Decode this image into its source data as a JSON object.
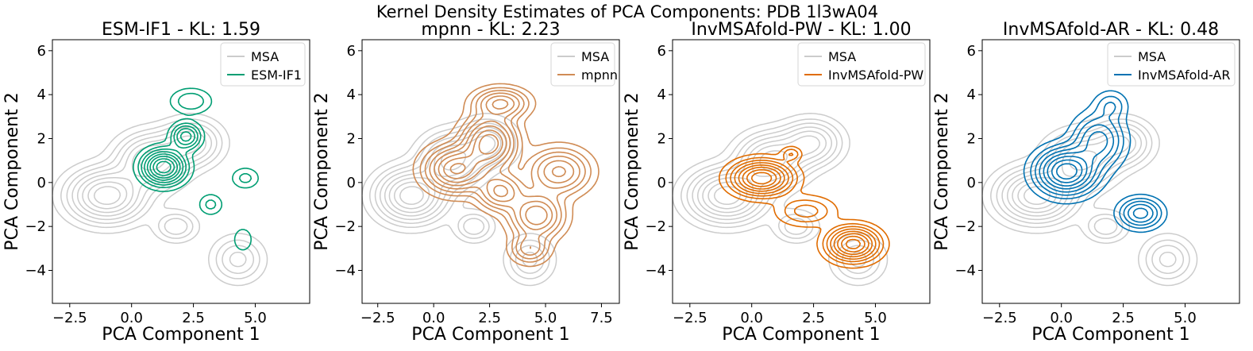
{
  "suptitle": "Kernel Density Estimates of PCA Components: PDB 1l3wA04",
  "reference": {
    "name": "MSA",
    "color": "#cccccc"
  },
  "chart_data": [
    {
      "type": "kde-contour",
      "title": "ESM-IF1 - KL: 1.59",
      "xlabel": "PCA Component 1",
      "ylabel": "PCA Component 2",
      "xlim": [
        -3.2,
        7.2
      ],
      "ylim": [
        -5.5,
        6.5
      ],
      "xticks": [
        "−2.5",
        "0.0",
        "2.5",
        "5.0"
      ],
      "xtick_values": [
        -2.5,
        0.0,
        2.5,
        5.0
      ],
      "yticks": [
        "−4",
        "−2",
        "0",
        "2",
        "4",
        "6"
      ],
      "ytick_values": [
        -4,
        -2,
        0,
        2,
        4,
        6
      ],
      "legend": [
        "MSA",
        "ESM-IF1"
      ],
      "series": [
        {
          "name": "MSA",
          "color": "#cccccc",
          "kernels": [
            [
              -1.0,
              -0.6,
              0.9,
              0.7,
              1.0
            ],
            [
              0.8,
              1.0,
              0.8,
              0.7,
              0.8
            ],
            [
              2.4,
              1.8,
              0.7,
              0.6,
              0.6
            ],
            [
              1.8,
              -2.0,
              0.5,
              0.4,
              0.3
            ],
            [
              4.3,
              -3.5,
              0.6,
              0.6,
              0.35
            ]
          ]
        },
        {
          "name": "ESM-IF1",
          "color": "#009e73",
          "kernels": [
            [
              1.3,
              0.7,
              0.5,
              0.45,
              1.0
            ],
            [
              2.2,
              2.1,
              0.35,
              0.35,
              0.5
            ],
            [
              2.4,
              3.7,
              0.5,
              0.35,
              0.2
            ],
            [
              4.6,
              0.2,
              0.35,
              0.3,
              0.15
            ],
            [
              3.2,
              -1.0,
              0.3,
              0.3,
              0.15
            ],
            [
              4.5,
              -2.6,
              0.25,
              0.35,
              0.12
            ]
          ]
        }
      ]
    },
    {
      "type": "kde-contour",
      "title": "mpnn - KL: 2.23",
      "xlabel": "PCA Component 1",
      "ylabel": "PCA Component 2",
      "xlim": [
        -3.2,
        8.3
      ],
      "ylim": [
        -5.5,
        6.5
      ],
      "xticks": [
        "−2.5",
        "0.0",
        "2.5",
        "5.0",
        "7.5"
      ],
      "xtick_values": [
        -2.5,
        0.0,
        2.5,
        5.0,
        7.5
      ],
      "yticks": [
        "−4",
        "−2",
        "0",
        "2",
        "4",
        "6"
      ],
      "ytick_values": [
        -4,
        -2,
        0,
        2,
        4,
        6
      ],
      "legend": [
        "MSA",
        "mpnn"
      ],
      "series": [
        {
          "name": "MSA",
          "color": "#cccccc",
          "kernels": [
            [
              -1.0,
              -0.6,
              0.9,
              0.7,
              1.0
            ],
            [
              0.8,
              1.0,
              0.8,
              0.7,
              0.8
            ],
            [
              2.4,
              1.8,
              0.7,
              0.6,
              0.6
            ],
            [
              1.8,
              -2.0,
              0.5,
              0.4,
              0.3
            ],
            [
              4.3,
              -3.5,
              0.6,
              0.6,
              0.35
            ]
          ]
        },
        {
          "name": "mpnn",
          "color": "#d08c55",
          "kernels": [
            [
              2.5,
              1.8,
              0.7,
              0.7,
              1.0
            ],
            [
              1.0,
              0.6,
              0.8,
              0.6,
              0.9
            ],
            [
              3.0,
              3.6,
              0.7,
              0.4,
              0.6
            ],
            [
              4.6,
              -1.5,
              0.7,
              0.6,
              0.7
            ],
            [
              5.6,
              0.5,
              0.8,
              0.6,
              0.6
            ],
            [
              4.3,
              -3.0,
              0.5,
              0.4,
              0.4
            ],
            [
              3.0,
              -0.4,
              0.6,
              0.5,
              0.6
            ]
          ]
        }
      ]
    },
    {
      "type": "kde-contour",
      "title": "InvMSAfold-PW - KL: 1.00",
      "xlabel": "PCA Component 1",
      "ylabel": "PCA Component 2",
      "xlim": [
        -3.2,
        7.2
      ],
      "ylim": [
        -5.5,
        6.5
      ],
      "xticks": [
        "−2.5",
        "0.0",
        "2.5",
        "5.0"
      ],
      "xtick_values": [
        -2.5,
        0.0,
        2.5,
        5.0
      ],
      "yticks": [
        "−4",
        "−2",
        "0",
        "2",
        "4",
        "6"
      ],
      "ytick_values": [
        -4,
        -2,
        0,
        2,
        4,
        6
      ],
      "legend": [
        "MSA",
        "InvMSAfold-PW"
      ],
      "series": [
        {
          "name": "MSA",
          "color": "#cccccc",
          "kernels": [
            [
              -1.0,
              -0.6,
              0.9,
              0.7,
              1.0
            ],
            [
              0.8,
              1.0,
              0.8,
              0.7,
              0.8
            ],
            [
              2.4,
              1.8,
              0.7,
              0.6,
              0.6
            ],
            [
              1.8,
              -2.0,
              0.5,
              0.4,
              0.3
            ],
            [
              4.3,
              -3.5,
              0.6,
              0.6,
              0.35
            ]
          ]
        },
        {
          "name": "InvMSAfold-PW",
          "color": "#e06c00",
          "kernels": [
            [
              0.4,
              0.2,
              0.7,
              0.45,
              1.0
            ],
            [
              4.1,
              -2.8,
              0.6,
              0.45,
              0.95
            ],
            [
              2.2,
              -1.3,
              0.7,
              0.4,
              0.25
            ],
            [
              1.6,
              1.3,
              0.25,
              0.2,
              0.2
            ]
          ]
        }
      ]
    },
    {
      "type": "kde-contour",
      "title": "InvMSAfold-AR - KL: 0.48",
      "xlabel": "PCA Component 1",
      "ylabel": "PCA Component 2",
      "xlim": [
        -3.2,
        7.2
      ],
      "ylim": [
        -5.5,
        6.5
      ],
      "xticks": [
        "−2.5",
        "0.0",
        "2.5",
        "5.0"
      ],
      "xtick_values": [
        -2.5,
        0.0,
        2.5,
        5.0
      ],
      "yticks": [
        "−4",
        "−2",
        "0",
        "2",
        "4",
        "6"
      ],
      "ytick_values": [
        -4,
        -2,
        0,
        2,
        4,
        6
      ],
      "legend": [
        "MSA",
        "InvMSAfold-AR"
      ],
      "series": [
        {
          "name": "MSA",
          "color": "#cccccc",
          "kernels": [
            [
              -1.0,
              -0.6,
              0.9,
              0.7,
              1.0
            ],
            [
              0.8,
              1.0,
              0.8,
              0.7,
              0.8
            ],
            [
              2.4,
              1.8,
              0.7,
              0.6,
              0.6
            ],
            [
              1.8,
              -2.0,
              0.5,
              0.4,
              0.3
            ],
            [
              4.3,
              -3.5,
              0.6,
              0.6,
              0.35
            ]
          ]
        },
        {
          "name": "InvMSAfold-AR",
          "color": "#0072b2",
          "kernels": [
            [
              0.2,
              0.5,
              0.7,
              0.6,
              1.0
            ],
            [
              1.5,
              1.9,
              0.6,
              0.7,
              0.5
            ],
            [
              2.0,
              3.5,
              0.4,
              0.4,
              0.2
            ],
            [
              3.2,
              -1.4,
              0.5,
              0.4,
              0.5
            ]
          ]
        }
      ]
    }
  ]
}
